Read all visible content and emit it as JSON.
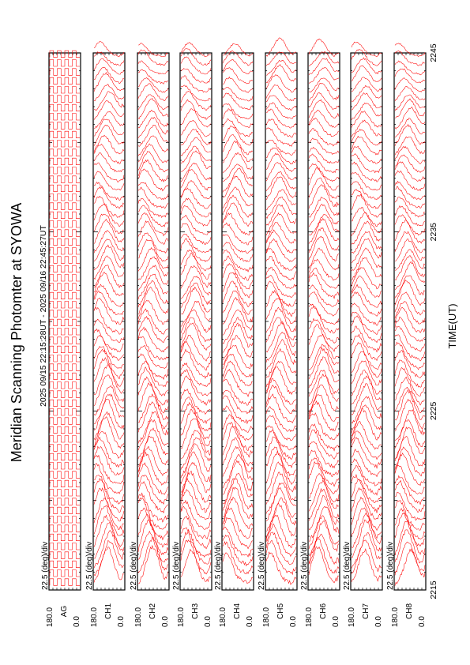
{
  "chart_data": {
    "type": "line",
    "orientation": "rotated-90-ccw",
    "title": "Meridian Scanning Photomter at SYOWA",
    "time_range_label": "2025 09/15 22:15:28UT - 2025 09/16 22:45:27UT",
    "xlabel": "TIME(UT)",
    "x_ticks": [
      "2215",
      "2225",
      "2235",
      "2245"
    ],
    "x_range": [
      2215,
      2245
    ],
    "line_color": "#ff0000",
    "panels": [
      {
        "channel": "AG",
        "scale_label": "22.5 (deg)/div",
        "y_top_label": "180.0",
        "y_bottom_label": "0.0",
        "kind": "gate"
      },
      {
        "channel": "CH1",
        "scale_label": "22.5 (deg)/div",
        "y_top_label": "180.0",
        "y_bottom_label": "0.0",
        "kind": "scan"
      },
      {
        "channel": "CH2",
        "scale_label": "22.5 (deg)/div",
        "y_top_label": "180.0",
        "y_bottom_label": "0.0",
        "kind": "scan"
      },
      {
        "channel": "CH3",
        "scale_label": "22.5 (deg)/div",
        "y_top_label": "180.0",
        "y_bottom_label": "0.0",
        "kind": "scan"
      },
      {
        "channel": "CH4",
        "scale_label": "22.5 (deg)/div",
        "y_top_label": "180.0",
        "y_bottom_label": "0.0",
        "kind": "scan"
      },
      {
        "channel": "CH5",
        "scale_label": "22.5 (deg)/div",
        "y_top_label": "180.0",
        "y_bottom_label": "0.0",
        "kind": "scan"
      },
      {
        "channel": "CH6",
        "scale_label": "22.5 (deg)/div",
        "y_top_label": "180.0",
        "y_bottom_label": "0.0",
        "kind": "scan"
      },
      {
        "channel": "CH7",
        "scale_label": "22.5 (deg)/div",
        "y_top_label": "180.0",
        "y_bottom_label": "0.0",
        "kind": "scan"
      },
      {
        "channel": "CH8",
        "scale_label": "22.5 (deg)/div",
        "y_top_label": "180.0",
        "y_bottom_label": "0.0",
        "kind": "scan"
      }
    ],
    "scans_per_panel": 60
  }
}
